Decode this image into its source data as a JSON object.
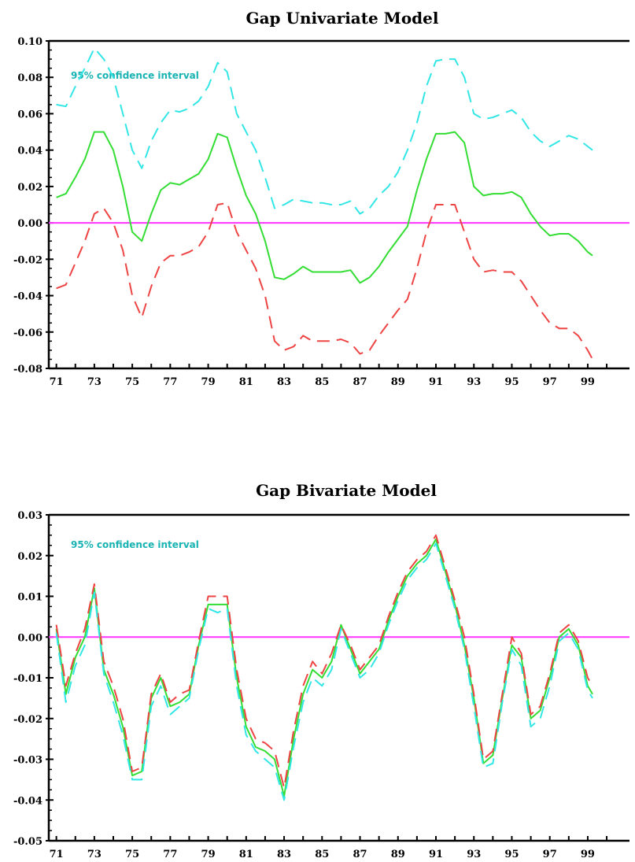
{
  "chart_data": [
    {
      "type": "line",
      "title": "Gap Univariate Model",
      "annotation": "95% confidence interval",
      "xlabel": "",
      "ylabel": "",
      "xlim": [
        1970.6,
        2001.2
      ],
      "ylim": [
        -0.08,
        0.1
      ],
      "x_tick_labels": [
        "71",
        "73",
        "75",
        "77",
        "79",
        "81",
        "83",
        "85",
        "87",
        "89",
        "91",
        "93",
        "95",
        "97",
        "99"
      ],
      "y_tick_values": [
        -0.08,
        -0.06,
        -0.04,
        -0.02,
        0.0,
        0.02,
        0.04,
        0.06,
        0.08,
        0.1
      ],
      "y_tick_labels": [
        "-0.08",
        "-0.06",
        "-0.04",
        "-0.02",
        "0.00",
        "0.02",
        "0.04",
        "0.06",
        "0.08",
        "0.10"
      ],
      "reference_line": 0,
      "colors": {
        "estimate": "#33dd33",
        "upper": "#33e6e6",
        "lower": "#ee4444",
        "zero": "#ff33ff"
      },
      "x": [
        1971.0,
        1971.5,
        1972.0,
        1972.5,
        1973.0,
        1973.5,
        1974.0,
        1974.5,
        1975.0,
        1975.5,
        1976.0,
        1976.5,
        1977.0,
        1977.5,
        1978.0,
        1978.5,
        1979.0,
        1979.5,
        1980.0,
        1980.5,
        1981.0,
        1981.5,
        1982.0,
        1982.5,
        1983.0,
        1983.5,
        1984.0,
        1984.5,
        1985.0,
        1985.5,
        1986.0,
        1986.5,
        1987.0,
        1987.5,
        1988.0,
        1988.5,
        1989.0,
        1989.5,
        1990.0,
        1990.5,
        1991.0,
        1991.5,
        1992.0,
        1992.5,
        1993.0,
        1993.5,
        1994.0,
        1994.5,
        1995.0,
        1995.5,
        1996.0,
        1996.5,
        1997.0,
        1997.5,
        1998.0,
        1998.5,
        1999.0,
        1999.25
      ],
      "series": [
        {
          "role": "estimate",
          "values": [
            0.014,
            0.016,
            0.025,
            0.035,
            0.05,
            0.05,
            0.04,
            0.02,
            -0.005,
            -0.01,
            0.005,
            0.018,
            0.022,
            0.021,
            0.024,
            0.027,
            0.035,
            0.049,
            0.047,
            0.03,
            0.015,
            0.005,
            -0.01,
            -0.03,
            -0.031,
            -0.028,
            -0.024,
            -0.027,
            -0.027,
            -0.027,
            -0.027,
            -0.026,
            -0.033,
            -0.03,
            -0.024,
            -0.016,
            -0.009,
            -0.002,
            0.018,
            0.035,
            0.049,
            0.049,
            0.05,
            0.044,
            0.02,
            0.015,
            0.016,
            0.016,
            0.017,
            0.014,
            0.005,
            -0.002,
            -0.007,
            -0.006,
            -0.006,
            -0.01,
            -0.016,
            -0.018
          ]
        },
        {
          "role": "upper",
          "values": [
            0.065,
            0.064,
            0.075,
            0.085,
            0.096,
            0.09,
            0.08,
            0.06,
            0.04,
            0.03,
            0.045,
            0.055,
            0.062,
            0.061,
            0.063,
            0.067,
            0.075,
            0.088,
            0.083,
            0.06,
            0.05,
            0.04,
            0.025,
            0.008,
            0.01,
            0.013,
            0.012,
            0.011,
            0.011,
            0.01,
            0.01,
            0.012,
            0.005,
            0.008,
            0.015,
            0.02,
            0.028,
            0.04,
            0.055,
            0.075,
            0.089,
            0.09,
            0.09,
            0.08,
            0.06,
            0.057,
            0.058,
            0.06,
            0.062,
            0.058,
            0.05,
            0.045,
            0.042,
            0.045,
            0.048,
            0.046,
            0.042,
            0.04
          ]
        },
        {
          "role": "lower",
          "values": [
            -0.036,
            -0.034,
            -0.022,
            -0.01,
            0.005,
            0.008,
            0.0,
            -0.015,
            -0.04,
            -0.052,
            -0.035,
            -0.022,
            -0.018,
            -0.018,
            -0.016,
            -0.013,
            -0.005,
            0.01,
            0.011,
            -0.005,
            -0.015,
            -0.025,
            -0.04,
            -0.065,
            -0.07,
            -0.068,
            -0.062,
            -0.065,
            -0.065,
            -0.065,
            -0.064,
            -0.066,
            -0.072,
            -0.07,
            -0.062,
            -0.055,
            -0.048,
            -0.042,
            -0.025,
            -0.005,
            0.01,
            0.01,
            0.01,
            -0.005,
            -0.02,
            -0.027,
            -0.026,
            -0.027,
            -0.027,
            -0.032,
            -0.04,
            -0.048,
            -0.055,
            -0.058,
            -0.058,
            -0.062,
            -0.07,
            -0.075
          ]
        }
      ]
    },
    {
      "type": "line",
      "title": "Gap Bivariate Model",
      "annotation": "95% confidence interval",
      "xlabel": "",
      "ylabel": "",
      "xlim": [
        1970.6,
        2001.2
      ],
      "ylim": [
        -0.05,
        0.03
      ],
      "x_tick_labels": [
        "71",
        "73",
        "75",
        "77",
        "79",
        "81",
        "83",
        "85",
        "87",
        "89",
        "91",
        "93",
        "95",
        "97",
        "99"
      ],
      "y_tick_values": [
        -0.05,
        -0.04,
        -0.03,
        -0.02,
        -0.01,
        0.0,
        0.01,
        0.02,
        0.03
      ],
      "y_tick_labels": [
        "-0.05",
        "-0.04",
        "-0.03",
        "-0.02",
        "-0.01",
        "0.00",
        "0.01",
        "0.02",
        "0.03"
      ],
      "reference_line": 0,
      "colors": {
        "estimate": "#33dd33",
        "upper": "#ee4444",
        "lower": "#33e6e6",
        "zero": "#ff33ff"
      },
      "x": [
        1971.0,
        1971.5,
        1972.0,
        1972.5,
        1973.0,
        1973.5,
        1974.0,
        1974.5,
        1975.0,
        1975.5,
        1976.0,
        1976.5,
        1977.0,
        1977.5,
        1978.0,
        1978.5,
        1979.0,
        1979.5,
        1980.0,
        1980.5,
        1981.0,
        1981.5,
        1982.0,
        1982.5,
        1983.0,
        1983.5,
        1984.0,
        1984.5,
        1985.0,
        1985.5,
        1986.0,
        1986.5,
        1987.0,
        1987.5,
        1988.0,
        1988.5,
        1989.0,
        1989.5,
        1990.0,
        1990.5,
        1991.0,
        1991.5,
        1992.0,
        1992.5,
        1993.0,
        1993.5,
        1994.0,
        1994.5,
        1995.0,
        1995.5,
        1996.0,
        1996.5,
        1997.0,
        1997.5,
        1998.0,
        1998.5,
        1999.0,
        1999.25
      ],
      "series": [
        {
          "role": "estimate",
          "values": [
            0.002,
            -0.014,
            -0.005,
            0.0,
            0.012,
            -0.008,
            -0.014,
            -0.022,
            -0.034,
            -0.033,
            -0.015,
            -0.01,
            -0.017,
            -0.016,
            -0.014,
            -0.002,
            0.008,
            0.008,
            0.008,
            -0.01,
            -0.022,
            -0.027,
            -0.028,
            -0.03,
            -0.039,
            -0.025,
            -0.014,
            -0.008,
            -0.01,
            -0.006,
            0.003,
            -0.003,
            -0.009,
            -0.006,
            -0.003,
            0.004,
            0.01,
            0.015,
            0.018,
            0.02,
            0.024,
            0.016,
            0.008,
            -0.002,
            -0.015,
            -0.031,
            -0.029,
            -0.015,
            -0.002,
            -0.005,
            -0.02,
            -0.018,
            -0.01,
            0.0,
            0.002,
            -0.002,
            -0.012,
            -0.014
          ]
        },
        {
          "role": "upper",
          "values": [
            0.003,
            -0.012,
            -0.004,
            0.002,
            0.013,
            -0.006,
            -0.012,
            -0.02,
            -0.033,
            -0.032,
            -0.014,
            -0.009,
            -0.016,
            -0.014,
            -0.013,
            -0.001,
            0.01,
            0.01,
            0.01,
            -0.008,
            -0.02,
            -0.025,
            -0.026,
            -0.028,
            -0.037,
            -0.023,
            -0.012,
            -0.006,
            -0.009,
            -0.004,
            0.003,
            -0.002,
            -0.008,
            -0.005,
            -0.002,
            0.005,
            0.011,
            0.016,
            0.019,
            0.021,
            0.025,
            0.017,
            0.009,
            0.0,
            -0.014,
            -0.03,
            -0.028,
            -0.014,
            0.0,
            -0.004,
            -0.019,
            -0.017,
            -0.009,
            0.001,
            0.003,
            -0.001,
            -0.01,
            -0.012
          ]
        },
        {
          "role": "lower",
          "values": [
            0.001,
            -0.016,
            -0.007,
            -0.002,
            0.011,
            -0.009,
            -0.016,
            -0.024,
            -0.035,
            -0.035,
            -0.017,
            -0.012,
            -0.019,
            -0.017,
            -0.015,
            -0.003,
            0.007,
            0.006,
            0.007,
            -0.012,
            -0.024,
            -0.028,
            -0.03,
            -0.032,
            -0.04,
            -0.027,
            -0.016,
            -0.01,
            -0.012,
            -0.008,
            0.002,
            -0.004,
            -0.01,
            -0.008,
            -0.004,
            0.003,
            0.009,
            0.014,
            0.017,
            0.019,
            0.023,
            0.015,
            0.007,
            -0.003,
            -0.017,
            -0.032,
            -0.031,
            -0.016,
            -0.003,
            -0.007,
            -0.022,
            -0.02,
            -0.012,
            -0.001,
            0.001,
            -0.003,
            -0.013,
            -0.015
          ]
        }
      ]
    }
  ]
}
